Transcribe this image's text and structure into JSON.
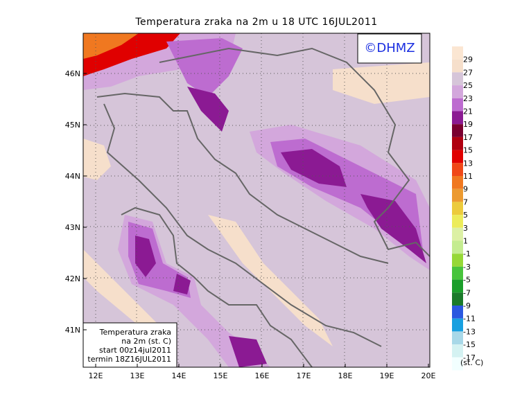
{
  "map": {
    "title": "Temperatura zraka na 2m u 18 UTC 16JUL2011",
    "copyright": "©DHMZ",
    "lat_labels": [
      "46N",
      "45N",
      "44N",
      "43N",
      "42N",
      "41N"
    ],
    "lon_labels": [
      "12E",
      "13E",
      "14E",
      "15E",
      "16E",
      "17E",
      "18E",
      "19E",
      "20E"
    ],
    "colorbar": {
      "labels": [
        "29",
        "27",
        "25",
        "23",
        "21",
        "19",
        "17",
        "15",
        "13",
        "11",
        "9",
        "7",
        "5",
        "3",
        "1",
        "-1",
        "-3",
        "-5",
        "-7",
        "-9",
        "-11",
        "-13",
        "-15",
        "-17"
      ],
      "colors": [
        "#fbe6d2",
        "#f6dfcb",
        "#d6c5d9",
        "#d3a7dc",
        "#bd6cd0",
        "#8b1a93",
        "#7a0030",
        "#b00010",
        "#e00000",
        "#f04818",
        "#f07820",
        "#ec9a30",
        "#eccb3c",
        "#ecec5a",
        "#dcf0a4",
        "#c4ec90",
        "#96d836",
        "#48c43c",
        "#1a9e2a",
        "#1a7a2a",
        "#2a58e0",
        "#18a0e0",
        "#a8d8e8",
        "#d4f2f2",
        "#f2ffff"
      ],
      "unit": "(st. C)"
    },
    "legend_box": [
      "Temperatura zraka",
      "na 2m (st. C)",
      "start 00z14jul2011",
      "termin 18Z16JUL2011"
    ]
  }
}
